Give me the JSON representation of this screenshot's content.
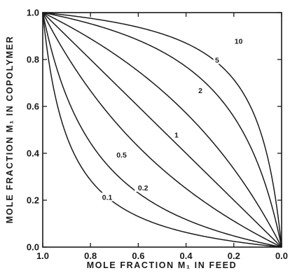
{
  "chart_data": {
    "type": "line",
    "title": "",
    "xlabel": "MOLE FRACTION M₁ IN FEED",
    "ylabel": "MOLE FRACTION M₁ IN COPOLYMER",
    "xlim": [
      1.0,
      0.0
    ],
    "ylim": [
      0.0,
      1.0
    ],
    "x_ticks": [
      "1.0",
      "0.8",
      "0.6",
      "0.4",
      "0.2",
      "0.0"
    ],
    "y_ticks": [
      "0.0",
      "0.2",
      "0.4",
      "0.6",
      "0.8",
      "1.0"
    ],
    "x_tick_values": [
      1.0,
      0.8,
      0.6,
      0.4,
      0.2,
      0.0
    ],
    "y_tick_values": [
      0.0,
      0.2,
      0.4,
      0.6,
      0.8,
      1.0
    ],
    "grid": false,
    "series": [
      {
        "label": "0.1",
        "r": 0.1,
        "label_at": [
          0.73,
          0.205
        ]
      },
      {
        "label": "0.2",
        "r": 0.2,
        "label_at": [
          0.58,
          0.245
        ]
      },
      {
        "label": "0.5",
        "r": 0.5,
        "label_at": [
          0.67,
          0.385
        ]
      },
      {
        "label": "1",
        "r": 1,
        "label_at": [
          0.44,
          0.47
        ]
      },
      {
        "label": "2",
        "r": 2,
        "label_at": [
          0.34,
          0.66
        ]
      },
      {
        "label": "5",
        "r": 5,
        "label_at": [
          0.27,
          0.79
        ]
      },
      {
        "label": "10",
        "r": 10,
        "label_at": [
          0.18,
          0.87
        ]
      }
    ]
  }
}
